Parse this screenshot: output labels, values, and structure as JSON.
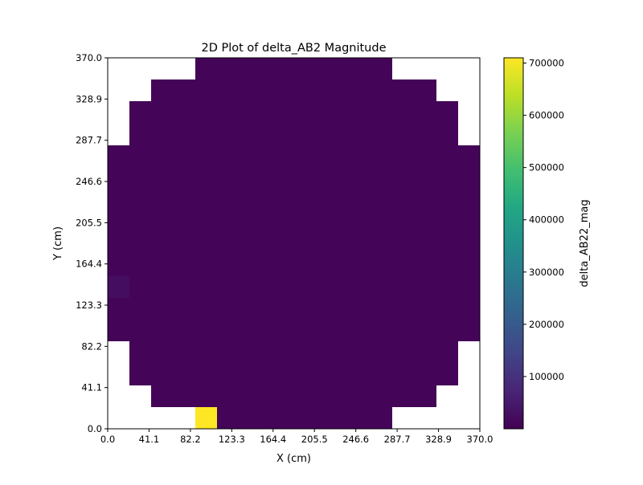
{
  "chart_data": {
    "type": "heatmap",
    "title": "2D Plot of delta_AB2 Magnitude",
    "xlabel": "X (cm)",
    "ylabel": "Y (cm)",
    "xlim": [
      0,
      370
    ],
    "ylim": [
      0,
      370
    ],
    "xticks": [
      "0.0",
      "41.1",
      "82.2",
      "123.3",
      "164.4",
      "205.5",
      "246.6",
      "287.7",
      "328.9",
      "370.0"
    ],
    "yticks": [
      "0.0",
      "41.1",
      "82.2",
      "123.3",
      "164.4",
      "205.5",
      "246.6",
      "287.7",
      "328.9",
      "370.0"
    ],
    "grid": false,
    "colormap": "viridis",
    "colorbar": {
      "label": "delta_AB22_mag",
      "min": 0,
      "max": 710000,
      "ticks": [
        "100000",
        "200000",
        "300000",
        "400000",
        "500000",
        "600000",
        "700000"
      ],
      "tick_values": [
        100000,
        200000,
        300000,
        400000,
        500000,
        600000,
        700000
      ]
    },
    "grid_size": 17,
    "row_extents": [
      [
        4,
        12
      ],
      [
        2,
        14
      ],
      [
        1,
        15
      ],
      [
        1,
        15
      ],
      [
        0,
        16
      ],
      [
        0,
        16
      ],
      [
        0,
        16
      ],
      [
        0,
        16
      ],
      [
        0,
        16
      ],
      [
        0,
        16
      ],
      [
        0,
        16
      ],
      [
        0,
        16
      ],
      [
        0,
        16
      ],
      [
        1,
        15
      ],
      [
        1,
        15
      ],
      [
        2,
        14
      ],
      [
        4,
        12
      ]
    ],
    "base_value": 8000,
    "special_cells": [
      {
        "col": 4,
        "row": 0,
        "value": 710000
      },
      {
        "col": 0,
        "row": 6,
        "value": 25000
      }
    ]
  }
}
